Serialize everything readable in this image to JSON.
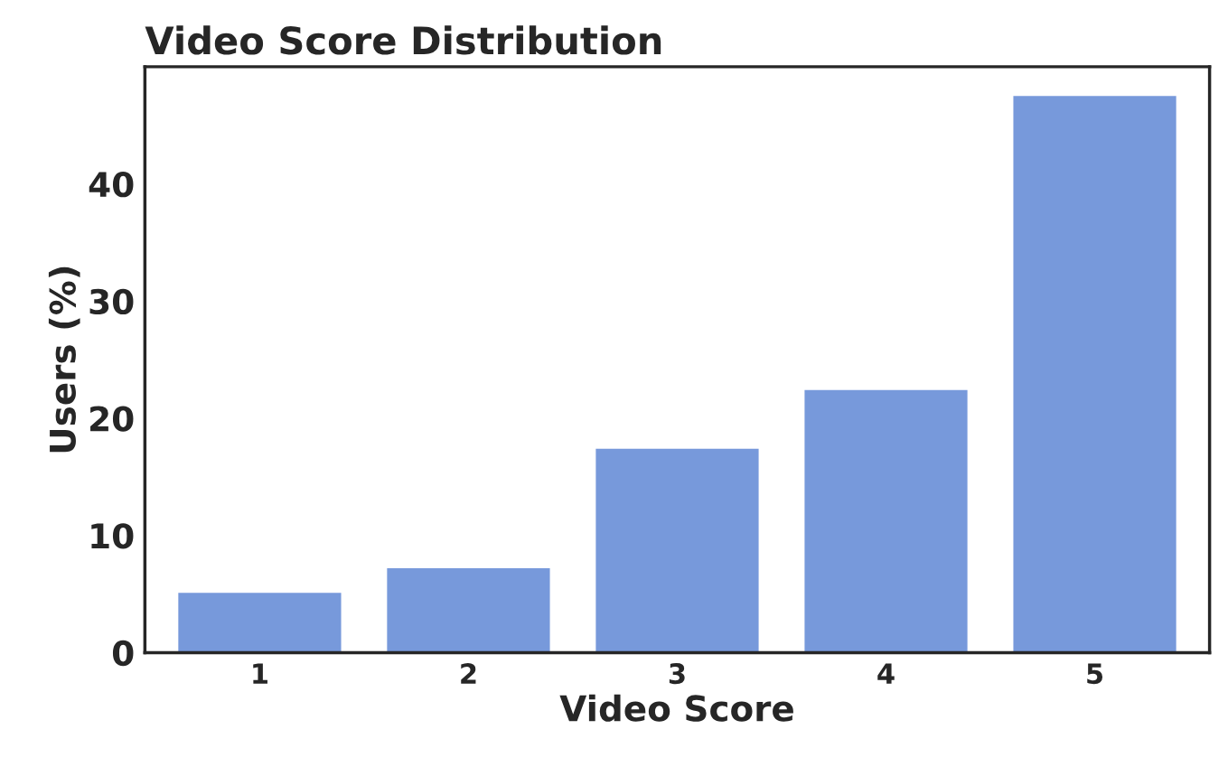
{
  "chart_data": {
    "type": "bar",
    "title": "Video Score Distribution",
    "xlabel": "Video Score",
    "ylabel": "Users (%)",
    "categories": [
      "1",
      "2",
      "3",
      "4",
      "5"
    ],
    "values": [
      5.1,
      7.2,
      17.4,
      22.4,
      47.5
    ],
    "color": "#7799db",
    "ylim": [
      0,
      50
    ],
    "yticks": [
      0,
      10,
      20,
      30,
      40
    ],
    "grid": false
  }
}
